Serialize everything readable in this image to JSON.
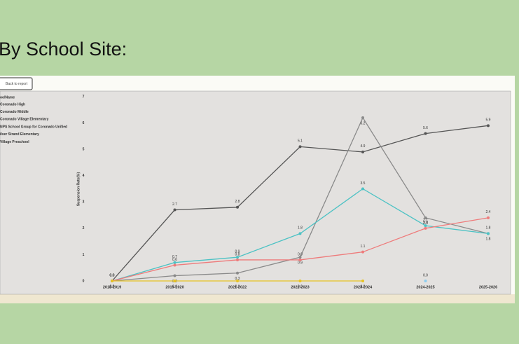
{
  "heading": "By School Site:",
  "button": "Back to report",
  "chart_data": {
    "type": "line",
    "y_label": "Suspension Rate(%)",
    "legend_title": "oolName",
    "categories": [
      "2018-2019",
      "2019-2020",
      "2021-2022",
      "2022-2023",
      "2023-2024",
      "2024-2025",
      "2025-2026"
    ],
    "ylim": [
      0,
      7
    ],
    "yticks": [
      0,
      1,
      2,
      3,
      4,
      5,
      6,
      7
    ],
    "series": [
      {
        "name": "Coronado High",
        "color": "#555555",
        "values": [
          0.0,
          2.7,
          2.8,
          5.1,
          4.9,
          5.6,
          5.9
        ],
        "value_labels": [
          "0.0",
          "2.7",
          "2.8",
          "5.1",
          "4.9",
          "5.6",
          "5.9"
        ]
      },
      {
        "name": "Coronado Middle",
        "color": "#8a8a8a",
        "values": [
          0.0,
          0.2,
          0.3,
          0.9,
          6.2,
          2.4,
          1.8
        ],
        "value_labels": [
          "0.0",
          "0.2",
          "0.3",
          "0.9",
          "6.2",
          "2.4",
          "1.8"
        ]
      },
      {
        "name": "Coronado Village Elementary",
        "color": "#4cc2c4",
        "values": [
          0.0,
          0.7,
          0.9,
          1.8,
          3.5,
          2.1,
          1.8
        ],
        "value_labels": [
          "0.0",
          "0.7",
          "0.9",
          "1.8",
          "3.5",
          "2.1",
          "1.8"
        ]
      },
      {
        "name": "NPS School Group for Coronado Unified",
        "color": "#ee7b7b",
        "values": [
          0.0,
          0.6,
          0.8,
          0.8,
          1.1,
          2.0,
          2.4
        ],
        "value_labels": [
          "0.0",
          "0.6",
          "0.8",
          "0.8",
          "1.1",
          "2.0",
          "2.4"
        ]
      },
      {
        "name": "ilver Strand Elementary",
        "color": "#e6c224",
        "values": [
          0.0,
          0.0,
          0.0,
          0.0,
          0.0,
          null,
          null
        ],
        "value_labels": [
          "0.0",
          "0.0",
          "0.0",
          "0.0",
          "0.0",
          null,
          null
        ]
      },
      {
        "name": "Village Preschool",
        "color": "#8ecdf0",
        "values": [
          null,
          null,
          null,
          null,
          null,
          0.0,
          null
        ],
        "value_labels": [
          null,
          null,
          null,
          null,
          null,
          "0.0",
          null
        ]
      }
    ]
  }
}
